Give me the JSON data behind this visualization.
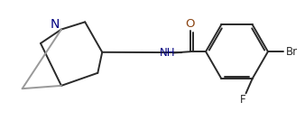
{
  "bg_color": "#ffffff",
  "line_color": "#2a2a2a",
  "N_color": "#000080",
  "O_color": "#8B4513",
  "label_color": "#1a1a1a",
  "line_width": 1.4,
  "font_size": 8.5,
  "figsize": [
    3.38,
    1.34
  ],
  "dpi": 100,
  "xlim": [
    0,
    10
  ],
  "ylim": [
    0,
    4.0
  ]
}
